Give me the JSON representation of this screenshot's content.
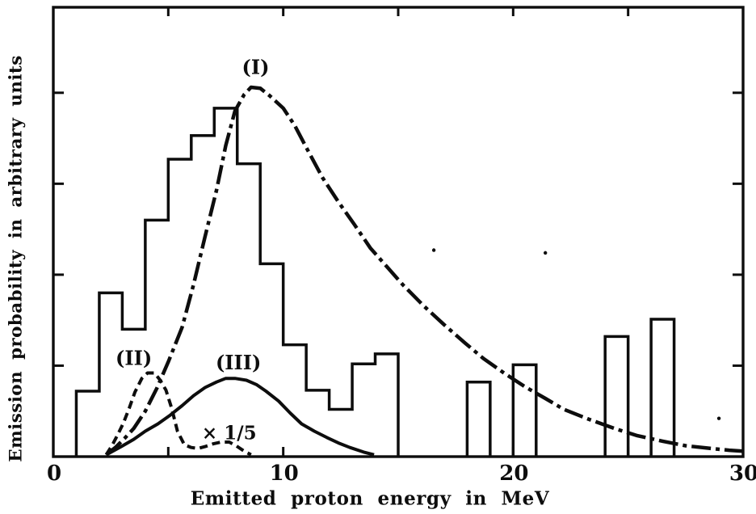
{
  "figure": {
    "ink_color": "#0d0d0d",
    "background_color": "#ffffff"
  },
  "chart_data": {
    "type": "line",
    "subtype": "histogram-with-overlaid-curves",
    "title": "",
    "xlabel": "Emitted proton energy in MeV",
    "ylabel": "Emission probability in arbitrary units",
    "grid": false,
    "legend_position": "none (curves labeled inline)",
    "x_axis": {
      "min": 0,
      "max": 30,
      "labeled_ticks": [
        0,
        10,
        20,
        30
      ],
      "minor_ticks": [
        5,
        10,
        15,
        20,
        25
      ],
      "unit": "MeV"
    },
    "y_axis": {
      "min": 0,
      "max": 4.94,
      "ticks": [
        1,
        2,
        3,
        4
      ],
      "tick_labels_visible": false,
      "unit": "arbitrary units"
    },
    "histogram_bins": [
      {
        "from": 1,
        "to": 2,
        "value": 0.72
      },
      {
        "from": 2,
        "to": 3,
        "value": 1.8
      },
      {
        "from": 3,
        "to": 4,
        "value": 1.4
      },
      {
        "from": 4,
        "to": 5,
        "value": 2.6
      },
      {
        "from": 5,
        "to": 6,
        "value": 3.27
      },
      {
        "from": 6,
        "to": 7,
        "value": 3.53
      },
      {
        "from": 7,
        "to": 8,
        "value": 3.83
      },
      {
        "from": 8,
        "to": 9,
        "value": 3.22
      },
      {
        "from": 9,
        "to": 10,
        "value": 2.12
      },
      {
        "from": 10,
        "to": 11,
        "value": 1.23
      },
      {
        "from": 11,
        "to": 12,
        "value": 0.73
      },
      {
        "from": 12,
        "to": 13,
        "value": 0.52
      },
      {
        "from": 13,
        "to": 14,
        "value": 1.02
      },
      {
        "from": 14,
        "to": 15,
        "value": 1.13
      },
      {
        "from": 18,
        "to": 19,
        "value": 0.82
      },
      {
        "from": 20,
        "to": 21,
        "value": 1.01
      },
      {
        "from": 24,
        "to": 25,
        "value": 1.32
      },
      {
        "from": 26,
        "to": 27,
        "value": 1.51
      }
    ],
    "series": [
      {
        "name": "(I)",
        "style": "dash-dot",
        "label_pos": {
          "x": 8.8,
          "y": 4.28
        },
        "points": [
          [
            2.3,
            0.02
          ],
          [
            2.7,
            0.1
          ],
          [
            3.1,
            0.2
          ],
          [
            3.5,
            0.31
          ],
          [
            4.0,
            0.5
          ],
          [
            4.5,
            0.75
          ],
          [
            5.0,
            1.04
          ],
          [
            5.6,
            1.42
          ],
          [
            6.1,
            1.89
          ],
          [
            6.6,
            2.42
          ],
          [
            7.1,
            2.93
          ],
          [
            7.5,
            3.42
          ],
          [
            7.9,
            3.8
          ],
          [
            8.3,
            3.98
          ],
          [
            8.6,
            4.06
          ],
          [
            9.0,
            4.05
          ],
          [
            9.4,
            3.97
          ],
          [
            10.0,
            3.83
          ],
          [
            10.5,
            3.64
          ],
          [
            11.0,
            3.4
          ],
          [
            11.7,
            3.07
          ],
          [
            12.4,
            2.8
          ],
          [
            13.1,
            2.55
          ],
          [
            13.8,
            2.29
          ],
          [
            14.5,
            2.09
          ],
          [
            15.2,
            1.89
          ],
          [
            16.1,
            1.66
          ],
          [
            17.0,
            1.45
          ],
          [
            17.9,
            1.25
          ],
          [
            18.7,
            1.08
          ],
          [
            19.6,
            0.92
          ],
          [
            20.5,
            0.77
          ],
          [
            21.4,
            0.64
          ],
          [
            22.2,
            0.52
          ],
          [
            23.3,
            0.41
          ],
          [
            24.4,
            0.31
          ],
          [
            25.4,
            0.23
          ],
          [
            26.5,
            0.17
          ],
          [
            27.5,
            0.12
          ],
          [
            28.6,
            0.09
          ],
          [
            29.4,
            0.07
          ],
          [
            30.0,
            0.06
          ]
        ]
      },
      {
        "name": "(II)",
        "style": "dashed",
        "label_pos": {
          "x": 3.5,
          "y": 1.08
        },
        "points": [
          [
            2.3,
            0.02
          ],
          [
            2.55,
            0.12
          ],
          [
            2.8,
            0.24
          ],
          [
            3.05,
            0.37
          ],
          [
            3.3,
            0.53
          ],
          [
            3.55,
            0.71
          ],
          [
            3.85,
            0.86
          ],
          [
            4.1,
            0.92
          ],
          [
            4.4,
            0.92
          ],
          [
            4.65,
            0.84
          ],
          [
            4.9,
            0.73
          ],
          [
            5.15,
            0.53
          ],
          [
            5.4,
            0.28
          ],
          [
            5.7,
            0.13
          ],
          [
            6.0,
            0.1
          ],
          [
            6.3,
            0.09
          ],
          [
            6.6,
            0.11
          ],
          [
            6.95,
            0.14
          ],
          [
            7.3,
            0.16
          ],
          [
            7.65,
            0.16
          ],
          [
            7.95,
            0.12
          ],
          [
            8.3,
            0.06
          ],
          [
            8.6,
            0.02
          ]
        ]
      },
      {
        "name": "(III)",
        "style": "solid",
        "label_pos": {
          "x": 8.05,
          "y": 1.03
        },
        "points": [
          [
            2.3,
            0.02
          ],
          [
            2.95,
            0.11
          ],
          [
            3.5,
            0.19
          ],
          [
            4.0,
            0.28
          ],
          [
            4.55,
            0.36
          ],
          [
            5.05,
            0.45
          ],
          [
            5.6,
            0.56
          ],
          [
            6.1,
            0.67
          ],
          [
            6.6,
            0.76
          ],
          [
            7.1,
            0.82
          ],
          [
            7.5,
            0.86
          ],
          [
            7.9,
            0.86
          ],
          [
            8.4,
            0.84
          ],
          [
            8.85,
            0.79
          ],
          [
            9.25,
            0.72
          ],
          [
            9.8,
            0.61
          ],
          [
            10.3,
            0.48
          ],
          [
            10.8,
            0.36
          ],
          [
            11.35,
            0.28
          ],
          [
            11.9,
            0.21
          ],
          [
            12.4,
            0.15
          ],
          [
            12.9,
            0.1
          ],
          [
            13.5,
            0.05
          ],
          [
            13.95,
            0.02
          ]
        ]
      }
    ],
    "annotations": [
      {
        "text": "× 1/5",
        "x": 7.65,
        "y": 0.26
      }
    ],
    "artifact_dots": [
      {
        "x": 16.55,
        "y": 2.27
      },
      {
        "x": 21.4,
        "y": 2.24
      },
      {
        "x": 28.95,
        "y": 0.42
      }
    ]
  }
}
